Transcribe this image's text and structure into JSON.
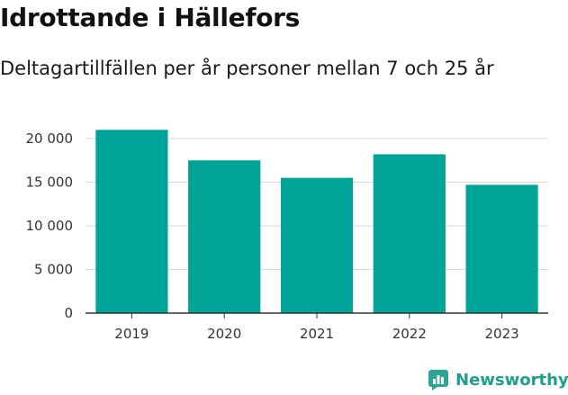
{
  "header": {
    "title": "Idrottande i Hällefors",
    "subtitle": "Deltagartillfällen per år personer mellan 7 och 25 år"
  },
  "brand": {
    "name": "Newsworthy",
    "icon": "bar-chart-icon",
    "color": "#2aa596"
  },
  "colors": {
    "bar": "#00a398",
    "grid": "#d9d9d9",
    "axis": "#333333"
  },
  "chart_data": {
    "type": "bar",
    "title": "Idrottande i Hällefors",
    "subtitle": "Deltagartillfällen per år personer mellan 7 och 25 år",
    "categories": [
      "2019",
      "2020",
      "2021",
      "2022",
      "2023"
    ],
    "values": [
      21000,
      17500,
      15500,
      18200,
      14700
    ],
    "ylim": [
      0,
      20000
    ],
    "yticks": [
      0,
      5000,
      10000,
      15000,
      20000
    ],
    "ytick_labels": [
      "0",
      "5 000",
      "10 000",
      "15 000",
      "20 000"
    ],
    "xlabel": "",
    "ylabel": "",
    "grid": true,
    "legend": "none"
  }
}
